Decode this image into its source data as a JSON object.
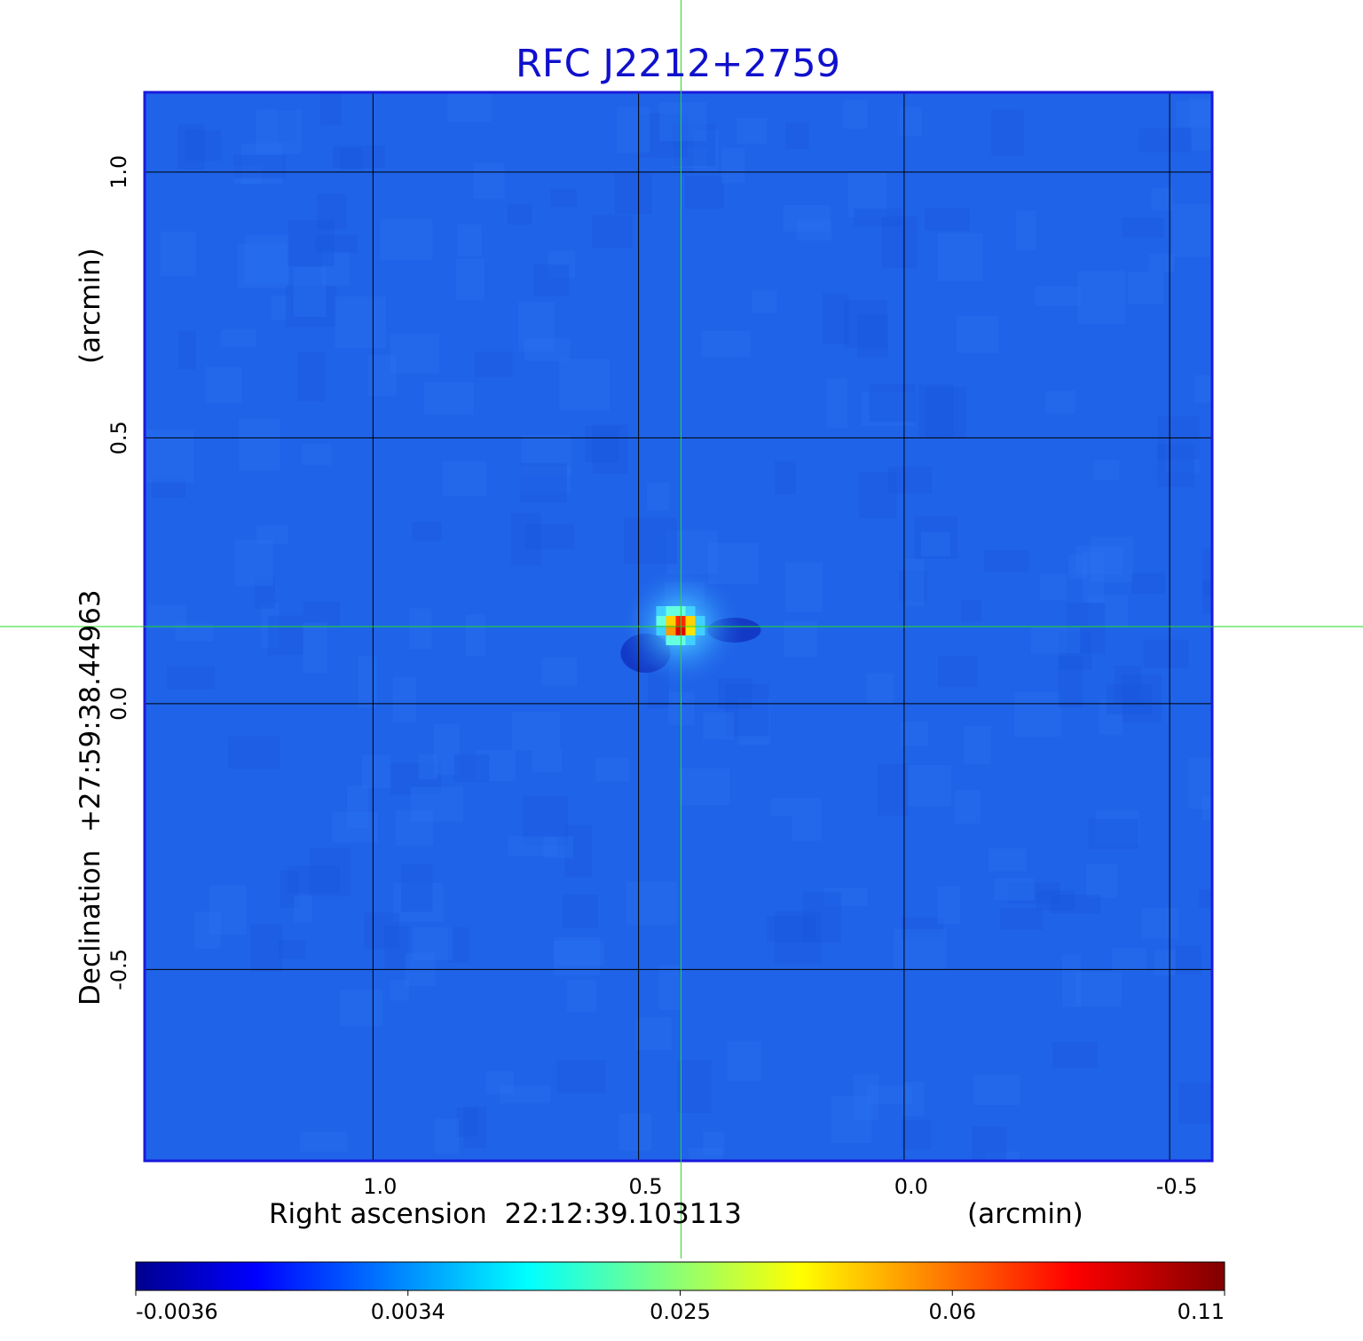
{
  "chart_data": {
    "type": "heatmap",
    "title": "RFC J2212+2759",
    "xlabel": "Right ascension  22:12:39.103113",
    "xlabel_unit": "(arcmin)",
    "ylabel": "Declination  +27:59:38.44963",
    "ylabel_unit": "(arcmin)",
    "x_ticks": [
      {
        "value": 1.0,
        "label": "1.0"
      },
      {
        "value": 0.5,
        "label": "0.5"
      },
      {
        "value": 0.0,
        "label": "0.0"
      },
      {
        "value": -0.5,
        "label": "-0.5"
      }
    ],
    "y_ticks": [
      {
        "value": 1.0,
        "label": "1.0"
      },
      {
        "value": 0.5,
        "label": "0.5"
      },
      {
        "value": 0.0,
        "label": "0.0"
      },
      {
        "value": -0.5,
        "label": "-0.5"
      }
    ],
    "xlim": [
      1.43,
      -0.58
    ],
    "ylim": [
      -0.86,
      1.15
    ],
    "x_reversed": true,
    "grid": true,
    "crosshair": {
      "x": 0.42,
      "y": 0.145,
      "color": "#22dd22"
    },
    "source": {
      "x": 0.42,
      "y": 0.145,
      "peak": 0.11
    },
    "colorbar": {
      "ticks": [
        "-0.0036",
        "0.0034",
        "0.025",
        "0.06",
        "0.11"
      ],
      "colormap": "jet",
      "orientation": "horizontal",
      "position": "bottom"
    },
    "colors": {
      "title": "#1010cc",
      "frame": "#1a1adc",
      "background": "#1f63e8"
    }
  }
}
